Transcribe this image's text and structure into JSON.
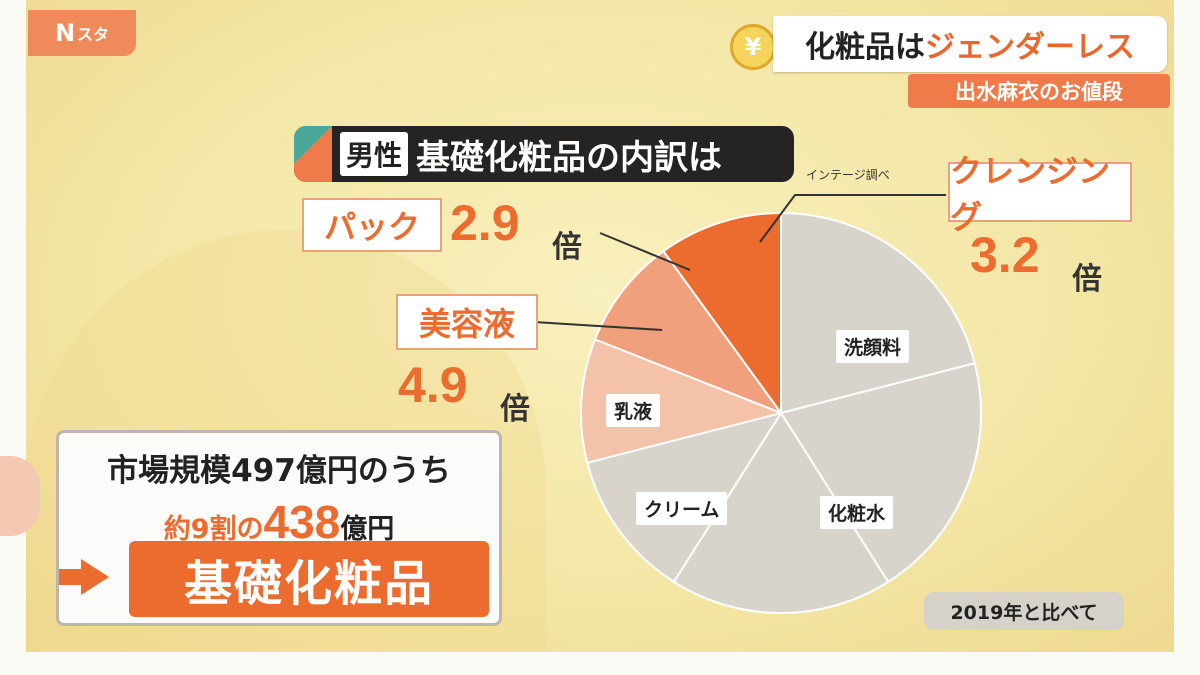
{
  "header": {
    "logo_main": "N",
    "logo_sub": "スタ",
    "yen_icon_glyph": "¥",
    "topic_part1": "化粧品は",
    "topic_part2": "ジェンダーレス",
    "presenter": "出水麻衣のお値段"
  },
  "heading": {
    "tag": "男性",
    "text": "基礎化粧品の内訳は"
  },
  "source": "インテージ調べ",
  "chart_data": {
    "type": "pie",
    "slices": [
      {
        "label": "洗顔料",
        "value": 21,
        "color": "#d9d4cb"
      },
      {
        "label": "化粧水",
        "value": 20,
        "color": "#d9d4cb"
      },
      {
        "label": "クリーム",
        "value": 18,
        "color": "#d9d4cb"
      },
      {
        "label": "乳液",
        "value": 12,
        "color": "#d9d4cb"
      },
      {
        "label": "美容液",
        "value": 10,
        "color": "#f3c2a8"
      },
      {
        "label": "パック",
        "value": 9,
        "color": "#f0a07c"
      },
      {
        "label": "クレンジング",
        "value": 10,
        "color": "#ec6c2f"
      }
    ],
    "callouts": [
      {
        "label": "パック",
        "multiplier": "2.9",
        "unit": "倍"
      },
      {
        "label": "美容液",
        "multiplier": "4.9",
        "unit": "倍"
      },
      {
        "label": "クレンジング",
        "multiplier": "3.2",
        "unit": "倍"
      }
    ]
  },
  "summary": {
    "line1": "市場規模497億円のうち",
    "line2_a": "約9割の",
    "line2_b": "438",
    "line2_c": "億円",
    "category": "基礎化粧品"
  },
  "compare_note": "2019年と比べて"
}
